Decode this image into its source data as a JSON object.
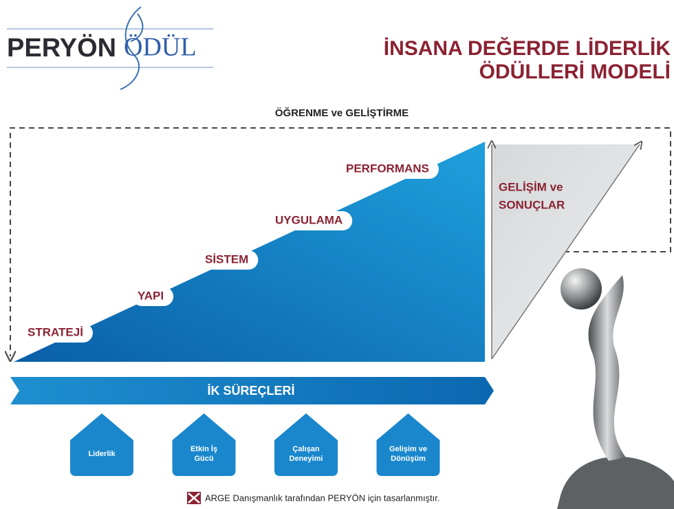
{
  "logo": {
    "left": "PERYÖN",
    "right": "ÖDÜL"
  },
  "title": [
    "İNSANA DEĞERDE LİDERLİK",
    "ÖDÜLLERİ MODELİ"
  ],
  "loop_label": "ÖĞRENME ve GELİŞTİRME",
  "steps": [
    "STRATEJİ",
    "YAPI",
    "SİSTEM",
    "UYGULAMA",
    "PERFORMANS"
  ],
  "results": [
    "GELİŞİM ve",
    "SONUÇLAR"
  ],
  "process_bar": "İK SÜREÇLERİ",
  "processes": [
    [
      "Liderlik"
    ],
    [
      "Etkin İş",
      "Gücü"
    ],
    [
      "Çalışan",
      "Deneyimi"
    ],
    [
      "Gelişim ve",
      "Dönüşüm"
    ]
  ],
  "footer": "ARGE Danışmanlık tarafından PERYÖN için tasarlanmıştır."
}
